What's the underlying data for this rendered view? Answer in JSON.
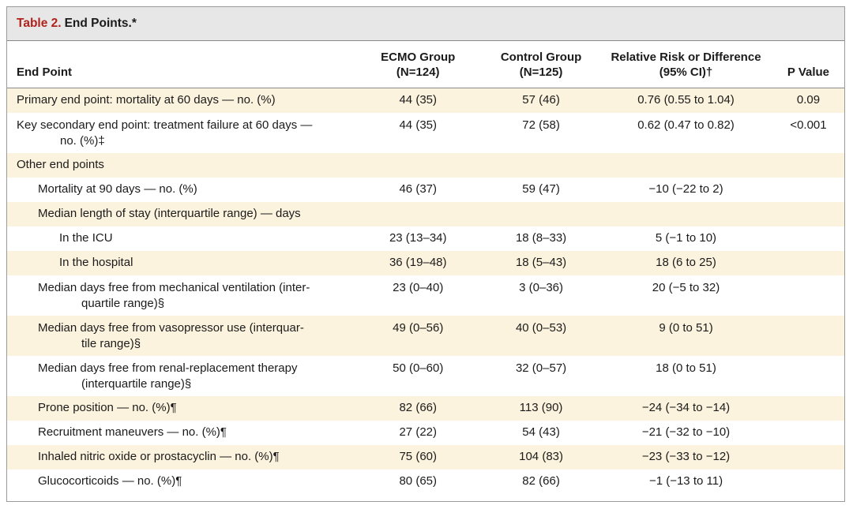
{
  "table": {
    "title_number": "Table 2.",
    "title_text": "End Points.*",
    "headers": {
      "end_point": "End Point",
      "ecmo_line1": "ECMO Group",
      "ecmo_line2": "(N=124)",
      "control_line1": "Control Group",
      "control_line2": "(N=125)",
      "rr_line1": "Relative Risk or Difference",
      "rr_line2": "(95% CI)†",
      "p_value": "P Value"
    },
    "rows": [
      {
        "label": "Primary end point: mortality at 60 days — no. (%)",
        "ecmo": "44 (35)",
        "control": "57 (46)",
        "rr": "0.76 (0.55 to 1.04)",
        "p": "0.09"
      },
      {
        "label": "Key secondary end point: treatment failure at 60 days —",
        "label_cont": "no. (%)‡",
        "ecmo": "44 (35)",
        "control": "72 (58)",
        "rr": "0.62 (0.47 to 0.82)",
        "p": "<0.001"
      },
      {
        "label": "Other end points",
        "ecmo": "",
        "control": "",
        "rr": "",
        "p": ""
      },
      {
        "label": "Mortality at 90 days — no. (%)",
        "ecmo": "46 (37)",
        "control": "59 (47)",
        "rr": "−10 (−22 to 2)",
        "p": ""
      },
      {
        "label": "Median length of stay (interquartile range) — days",
        "ecmo": "",
        "control": "",
        "rr": "",
        "p": ""
      },
      {
        "label": "In the ICU",
        "ecmo": "23 (13–34)",
        "control": "18 (8–33)",
        "rr": "5 (−1 to 10)",
        "p": ""
      },
      {
        "label": "In the hospital",
        "ecmo": "36 (19–48)",
        "control": "18 (5–43)",
        "rr": "18 (6 to 25)",
        "p": ""
      },
      {
        "label": "Median days free from mechanical ventilation (inter-",
        "label_cont": "quartile range)§",
        "ecmo": "23 (0–40)",
        "control": "3 (0–36)",
        "rr": "20 (−5 to 32)",
        "p": ""
      },
      {
        "label": "Median days free from vasopressor use (interquar-",
        "label_cont": "tile range)§",
        "ecmo": "49 (0–56)",
        "control": "40 (0–53)",
        "rr": "9 (0 to 51)",
        "p": ""
      },
      {
        "label": "Median days free from renal-replacement therapy",
        "label_cont": "(interquartile range)§",
        "ecmo": "50 (0–60)",
        "control": "32 (0–57)",
        "rr": "18 (0 to 51)",
        "p": ""
      },
      {
        "label": "Prone position — no. (%)¶",
        "ecmo": "82 (66)",
        "control": "113 (90)",
        "rr": "−24 (−34 to −14)",
        "p": ""
      },
      {
        "label": "Recruitment maneuvers — no. (%)¶",
        "ecmo": "27 (22)",
        "control": "54 (43)",
        "rr": "−21 (−32 to −10)",
        "p": ""
      },
      {
        "label": "Inhaled nitric oxide or prostacyclin — no. (%)¶",
        "ecmo": "75 (60)",
        "control": "104 (83)",
        "rr": "−23 (−33 to −12)",
        "p": ""
      },
      {
        "label": "Glucocorticoids — no. (%)¶",
        "ecmo": "80 (65)",
        "control": "82 (66)",
        "rr": "−1 (−13 to 11)",
        "p": ""
      }
    ]
  }
}
